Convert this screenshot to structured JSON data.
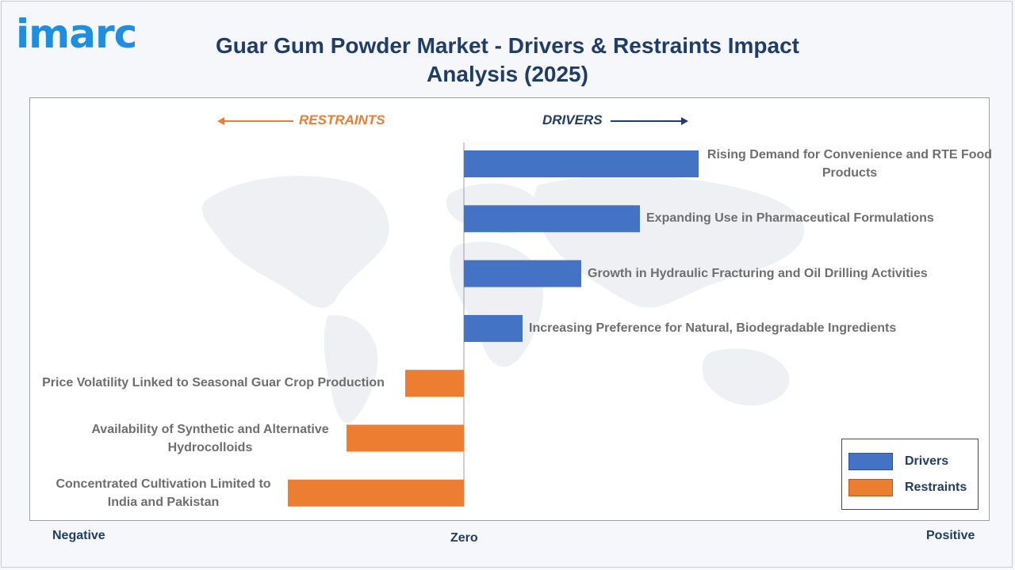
{
  "logo": {
    "text": "imarc"
  },
  "title": "Guar Gum Powder Market - Drivers & Restraints Impact Analysis (2025)",
  "direction_labels": {
    "restraints": "RESTRAINTS",
    "drivers": "DRIVERS"
  },
  "axis": {
    "negative": "Negative",
    "zero": "Zero",
    "positive": "Positive"
  },
  "legend": [
    {
      "label": "Drivers",
      "color": "#4472c4"
    },
    {
      "label": "Restraints",
      "color": "#ed7d31"
    }
  ],
  "colors": {
    "drivers": "#4472c4",
    "restraints": "#ed7d31",
    "title": "#1f3d66",
    "logo": "#1e8fe0"
  },
  "chart_data": {
    "type": "bar",
    "orientation": "horizontal",
    "title": "Guar Gum Powder Market - Drivers & Restraints Impact Analysis (2025)",
    "categories": [
      "Rising Demand for Convenience and RTE Food Products",
      "Expanding Use in Pharmaceutical Formulations",
      "Growth in Hydraulic Fracturing and Oil Drilling Activities",
      "Increasing Preference for Natural, Biodegradable Ingredients",
      "Price Volatility Linked to Seasonal Guar Crop Production",
      "Availability of Synthetic and Alternative Hydrocolloids",
      "Concentrated Cultivation Limited to India and Pakistan"
    ],
    "values": [
      4,
      3,
      2,
      1,
      -1,
      -2,
      -3
    ],
    "series_type": [
      "driver",
      "driver",
      "driver",
      "driver",
      "restraint",
      "restraint",
      "restraint"
    ],
    "xlim": [
      -7.4,
      8.7
    ],
    "legend_position": "bottom-right",
    "grid": false
  }
}
